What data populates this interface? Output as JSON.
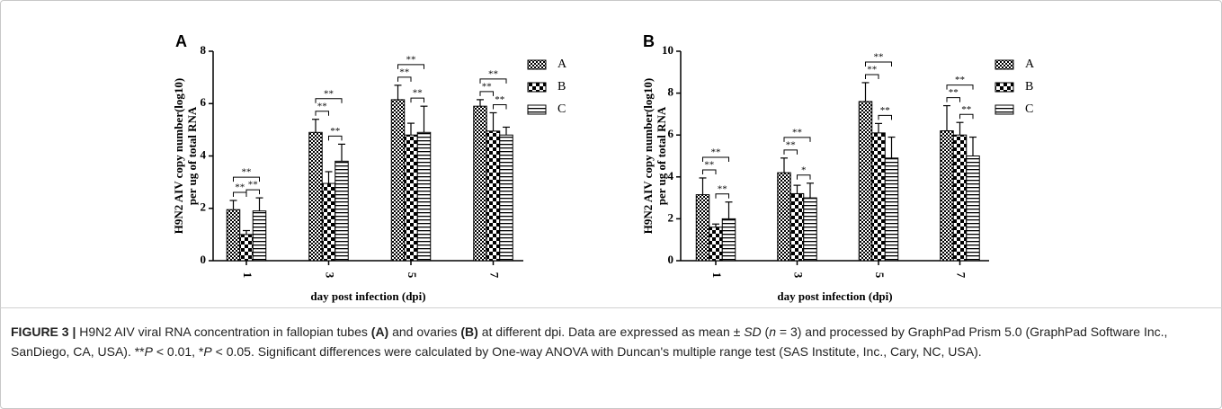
{
  "chart_data": [
    {
      "type": "bar",
      "panel": "A",
      "ylabel": [
        "H9N2 AIV copy number(log10)",
        "per ug of total RNA"
      ],
      "xlabel": "day post infection (dpi)",
      "categories": [
        "1",
        "3",
        "5",
        "7"
      ],
      "series": [
        {
          "name": "A",
          "color": "#000000",
          "values": [
            1.95,
            4.9,
            6.15,
            5.9
          ],
          "errors": [
            0.35,
            0.5,
            0.55,
            0.25
          ]
        },
        {
          "name": "B",
          "color": "#000000",
          "values": [
            1.0,
            2.95,
            4.8,
            4.95
          ],
          "errors": [
            0.15,
            0.45,
            0.45,
            0.7
          ]
        },
        {
          "name": "C",
          "color": "#000000",
          "values": [
            1.9,
            3.8,
            4.9,
            4.8
          ],
          "errors": [
            0.5,
            0.65,
            1.0,
            0.3
          ]
        }
      ],
      "significance": [
        [
          "**",
          "**",
          "**"
        ],
        [
          "**",
          "**",
          "**"
        ],
        [
          "**",
          "**",
          "**"
        ],
        [
          "**",
          "**",
          "**"
        ]
      ],
      "ylim": [
        0,
        8
      ],
      "yticks": [
        0,
        2,
        4,
        6,
        8
      ]
    },
    {
      "type": "bar",
      "panel": "B",
      "ylabel": [
        "H9N2 AIV copy number(log10)",
        "per ug of total RNA"
      ],
      "xlabel": "day post infection (dpi)",
      "categories": [
        "1",
        "3",
        "5",
        "7"
      ],
      "series": [
        {
          "name": "A",
          "color": "#000000",
          "values": [
            3.15,
            4.2,
            7.6,
            6.2
          ],
          "errors": [
            0.8,
            0.7,
            0.9,
            1.2
          ]
        },
        {
          "name": "B",
          "color": "#000000",
          "values": [
            1.6,
            3.2,
            6.1,
            6.0
          ],
          "errors": [
            0.15,
            0.4,
            0.45,
            0.6
          ]
        },
        {
          "name": "C",
          "color": "#000000",
          "values": [
            2.0,
            3.0,
            4.9,
            5.0
          ],
          "errors": [
            0.8,
            0.7,
            1.0,
            0.9
          ]
        }
      ],
      "significance": [
        [
          "**",
          "**",
          "**"
        ],
        [
          "**",
          "*",
          "**"
        ],
        [
          "**",
          "**",
          "**"
        ],
        [
          "**",
          "**",
          "**"
        ]
      ],
      "ylim": [
        0,
        10
      ],
      "yticks": [
        0,
        2,
        4,
        6,
        8,
        10
      ]
    }
  ],
  "caption": [
    {
      "text": "FIGURE 3 |",
      "style": "bold"
    },
    {
      "text": " H9N2 AIV viral RNA concentration in fallopian tubes ",
      "style": "normal"
    },
    {
      "text": "(A)",
      "style": "bold"
    },
    {
      "text": " and ovaries ",
      "style": "normal"
    },
    {
      "text": "(B)",
      "style": "bold"
    },
    {
      "text": " at different dpi. Data are expressed as mean ± ",
      "style": "normal"
    },
    {
      "text": "SD",
      "style": "italic"
    },
    {
      "text": " (",
      "style": "normal"
    },
    {
      "text": "n",
      "style": "italic"
    },
    {
      "text": " = 3) and processed by GraphPad Prism 5.0 (GraphPad Software Inc., SanDiego, CA, USA). **",
      "style": "normal"
    },
    {
      "text": "P",
      "style": "italic"
    },
    {
      "text": " < 0.01, *",
      "style": "normal"
    },
    {
      "text": "P",
      "style": "italic"
    },
    {
      "text": " < 0.05. Significant differences were calculated by One-way ANOVA with Duncan's multiple range test (SAS Institute, Inc., Cary, NC, USA).",
      "style": "normal"
    }
  ]
}
